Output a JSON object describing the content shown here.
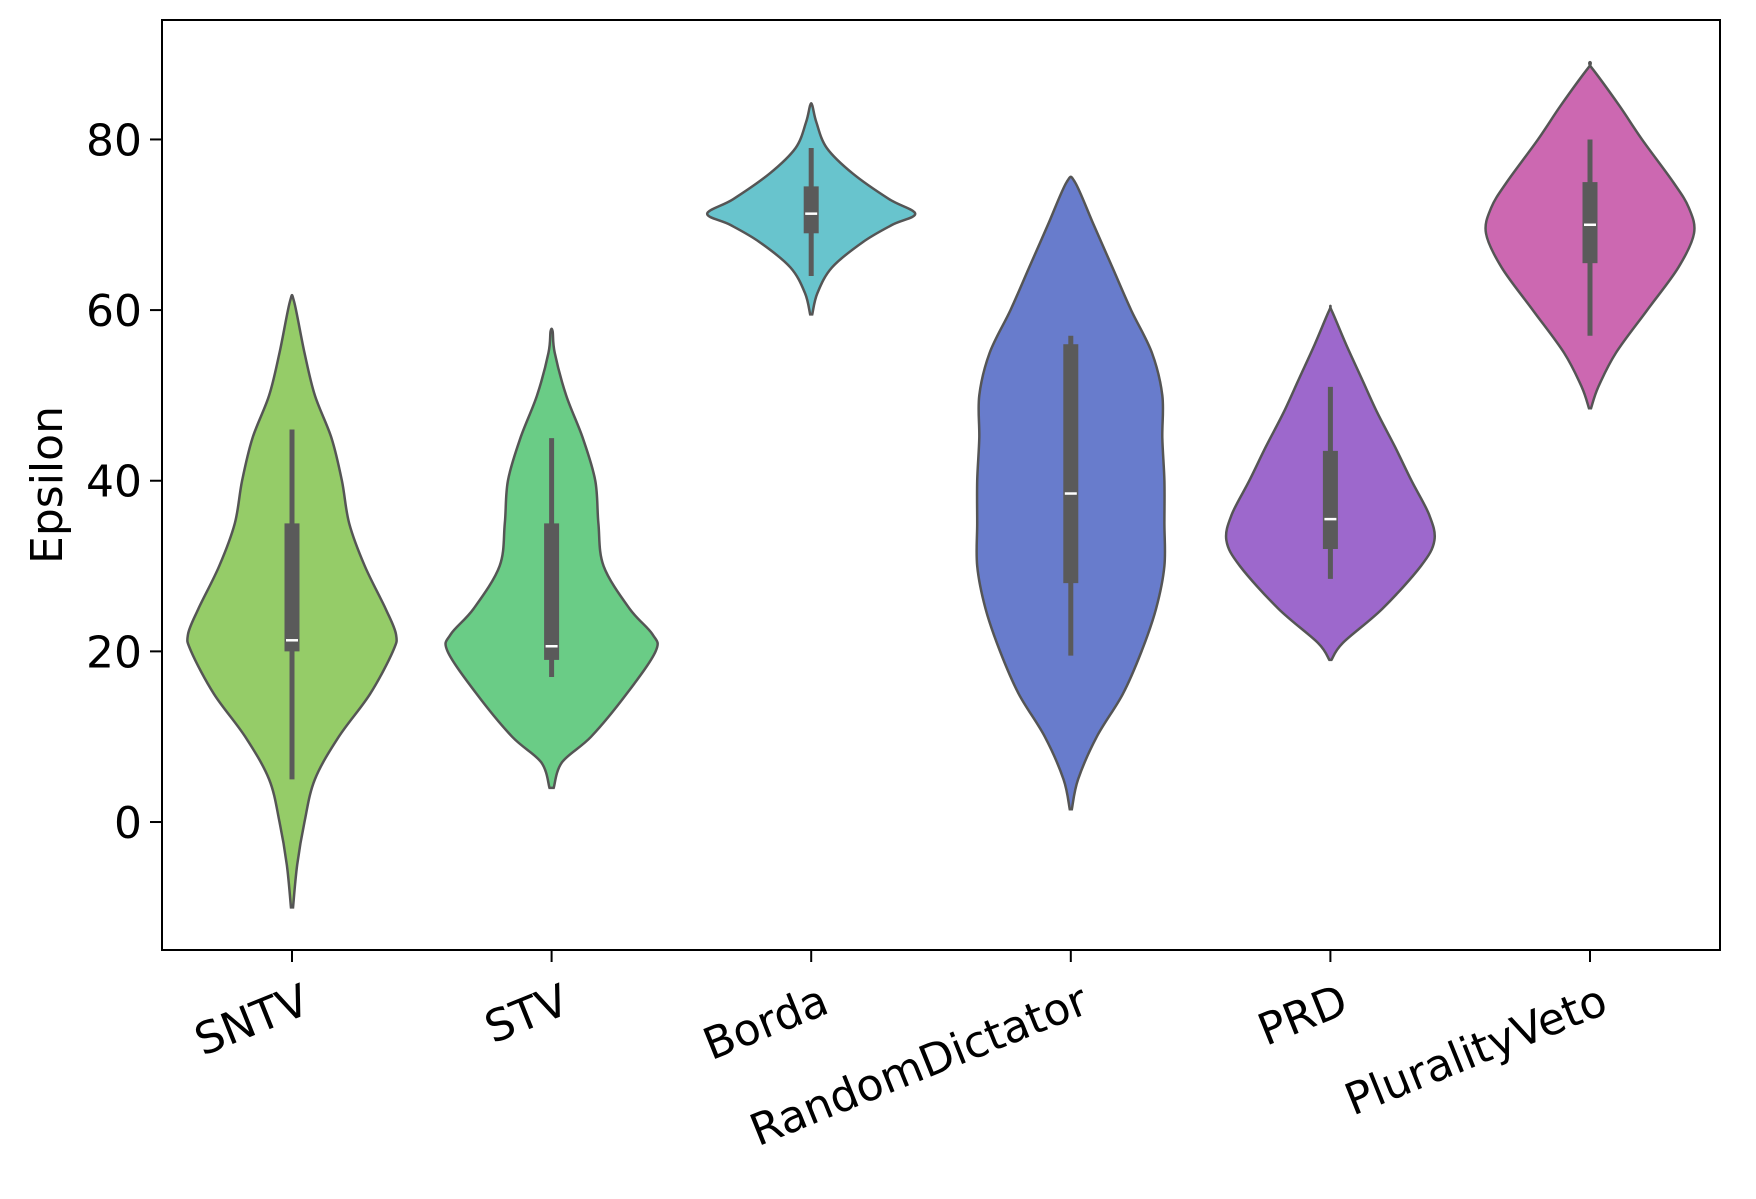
{
  "chart_data": {
    "type": "violin",
    "title": "",
    "xlabel": "",
    "ylabel": "Epsilon",
    "ylim": [
      -15,
      94
    ],
    "yticks": [
      0,
      20,
      40,
      60,
      80
    ],
    "grid": false,
    "categories": [
      "SNTV",
      "STV",
      "Borda",
      "RandomDictator",
      "PRD",
      "PluralityVeto"
    ],
    "series": [
      {
        "category": "SNTV",
        "color": "#95cc68",
        "range": [
          -10,
          61
        ],
        "median": 21.3,
        "q1": 20,
        "q3": 35,
        "whisker": [
          5,
          46
        ],
        "density": [
          [
            -10,
            0.01
          ],
          [
            -5,
            0.05
          ],
          [
            0,
            0.12
          ],
          [
            5,
            0.22
          ],
          [
            10,
            0.45
          ],
          [
            15,
            0.75
          ],
          [
            20,
            0.97
          ],
          [
            22,
            1.0
          ],
          [
            25,
            0.9
          ],
          [
            30,
            0.7
          ],
          [
            35,
            0.55
          ],
          [
            40,
            0.48
          ],
          [
            45,
            0.38
          ],
          [
            50,
            0.22
          ],
          [
            55,
            0.12
          ],
          [
            61,
            0.02
          ]
        ]
      },
      {
        "category": "STV",
        "color": "#6acc86",
        "range": [
          4,
          57.5
        ],
        "median": 20.6,
        "q1": 19,
        "q3": 35,
        "whisker": [
          17,
          45
        ],
        "density": [
          [
            4,
            0.02
          ],
          [
            7,
            0.1
          ],
          [
            10,
            0.38
          ],
          [
            15,
            0.72
          ],
          [
            20,
            1.0
          ],
          [
            22,
            0.97
          ],
          [
            25,
            0.75
          ],
          [
            30,
            0.5
          ],
          [
            35,
            0.45
          ],
          [
            40,
            0.42
          ],
          [
            45,
            0.3
          ],
          [
            50,
            0.14
          ],
          [
            55,
            0.03
          ],
          [
            57.5,
            0.01
          ]
        ]
      },
      {
        "category": "Borda",
        "color": "#68c4cd",
        "range": [
          59.5,
          84
        ],
        "median": 71.3,
        "q1": 69,
        "q3": 74.5,
        "whisker": [
          64,
          79
        ],
        "density": [
          [
            59.5,
            0.01
          ],
          [
            62,
            0.06
          ],
          [
            65,
            0.2
          ],
          [
            68,
            0.5
          ],
          [
            70,
            0.78
          ],
          [
            71.3,
            1.0
          ],
          [
            73,
            0.75
          ],
          [
            76,
            0.4
          ],
          [
            79,
            0.15
          ],
          [
            82,
            0.05
          ],
          [
            84,
            0.01
          ]
        ]
      },
      {
        "category": "RandomDictator",
        "color": "#687ccc",
        "range": [
          1.5,
          75
        ],
        "median": 38.5,
        "q1": 28,
        "q3": 56,
        "whisker": [
          19.5,
          57
        ],
        "density": [
          [
            1.5,
            0.01
          ],
          [
            5,
            0.07
          ],
          [
            10,
            0.25
          ],
          [
            15,
            0.5
          ],
          [
            20,
            0.68
          ],
          [
            25,
            0.82
          ],
          [
            30,
            0.9
          ],
          [
            35,
            0.9
          ],
          [
            40,
            0.9
          ],
          [
            45,
            0.88
          ],
          [
            50,
            0.88
          ],
          [
            55,
            0.78
          ],
          [
            60,
            0.58
          ],
          [
            65,
            0.4
          ],
          [
            70,
            0.22
          ],
          [
            75,
            0.04
          ]
        ]
      },
      {
        "category": "PRD",
        "color": "#9d68cc",
        "range": [
          19,
          60
        ],
        "median": 35.5,
        "q1": 32,
        "q3": 43.5,
        "whisker": [
          28.5,
          51
        ],
        "density": [
          [
            19,
            0.01
          ],
          [
            21,
            0.12
          ],
          [
            25,
            0.5
          ],
          [
            30,
            0.87
          ],
          [
            33,
            1.0
          ],
          [
            36,
            0.95
          ],
          [
            40,
            0.78
          ],
          [
            44,
            0.62
          ],
          [
            48,
            0.45
          ],
          [
            52,
            0.3
          ],
          [
            56,
            0.15
          ],
          [
            60,
            0.01
          ]
        ]
      },
      {
        "category": "PluralityVeto",
        "color": "#cc68b1",
        "range": [
          48.5,
          88.5
        ],
        "median": 70,
        "q1": 65.5,
        "q3": 75,
        "whisker": [
          57,
          80
        ],
        "density": [
          [
            48.5,
            0.01
          ],
          [
            51,
            0.08
          ],
          [
            55,
            0.25
          ],
          [
            60,
            0.55
          ],
          [
            65,
            0.85
          ],
          [
            69,
            1.0
          ],
          [
            72,
            0.95
          ],
          [
            75,
            0.8
          ],
          [
            80,
            0.5
          ],
          [
            84,
            0.28
          ],
          [
            88.5,
            0.01
          ]
        ]
      }
    ]
  }
}
